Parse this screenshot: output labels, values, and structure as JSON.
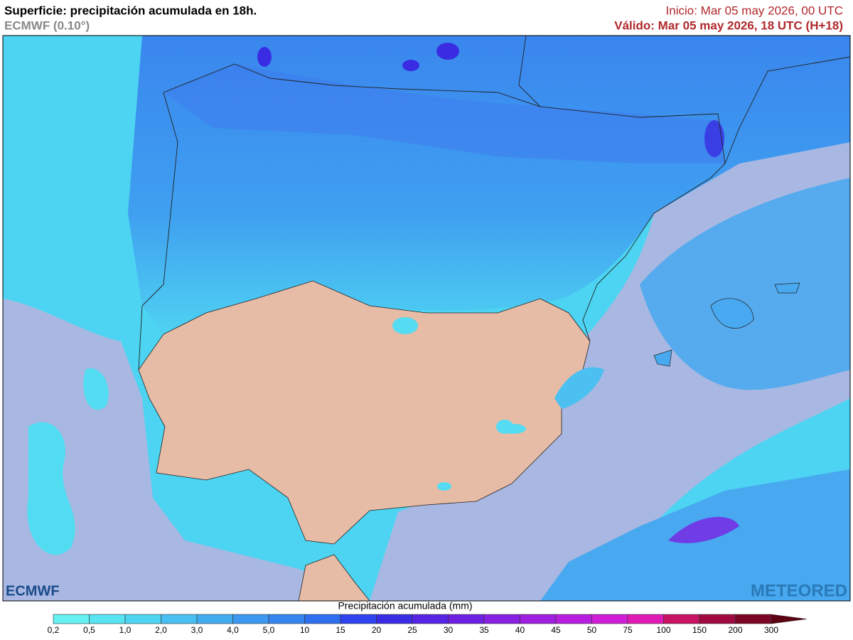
{
  "header": {
    "title": "Superficie: precipitación acumulada en 18h.",
    "model": "ECMWF (0.10°)",
    "init": "Inicio: Mar 05 may 2026, 00 UTC",
    "valid": "Válido: Mar 05 may 2026, 18 UTC (H+18)"
  },
  "logos": {
    "left": "ECMWF",
    "right": "METEORED"
  },
  "legend": {
    "title": "Precipitación acumulada (mm)",
    "ticks": [
      "0,2",
      "0,5",
      "1,0",
      "2,0",
      "3,0",
      "4,0",
      "5,0",
      "10",
      "15",
      "20",
      "25",
      "30",
      "35",
      "40",
      "45",
      "50",
      "75",
      "100",
      "150",
      "200",
      "300"
    ],
    "colors": [
      "#66f2f2",
      "#58e4f2",
      "#4fd4f2",
      "#48c0f2",
      "#42acf0",
      "#3c98f0",
      "#3584ef",
      "#2e6eef",
      "#2f44ef",
      "#3a2ce2",
      "#5624e2",
      "#6e20e2",
      "#8820e2",
      "#a01ee0",
      "#b81ee0",
      "#d01ed8",
      "#e01ab4",
      "#c81264",
      "#a00a40",
      "#7a0524"
    ],
    "over_color": "#5c0012"
  }
}
